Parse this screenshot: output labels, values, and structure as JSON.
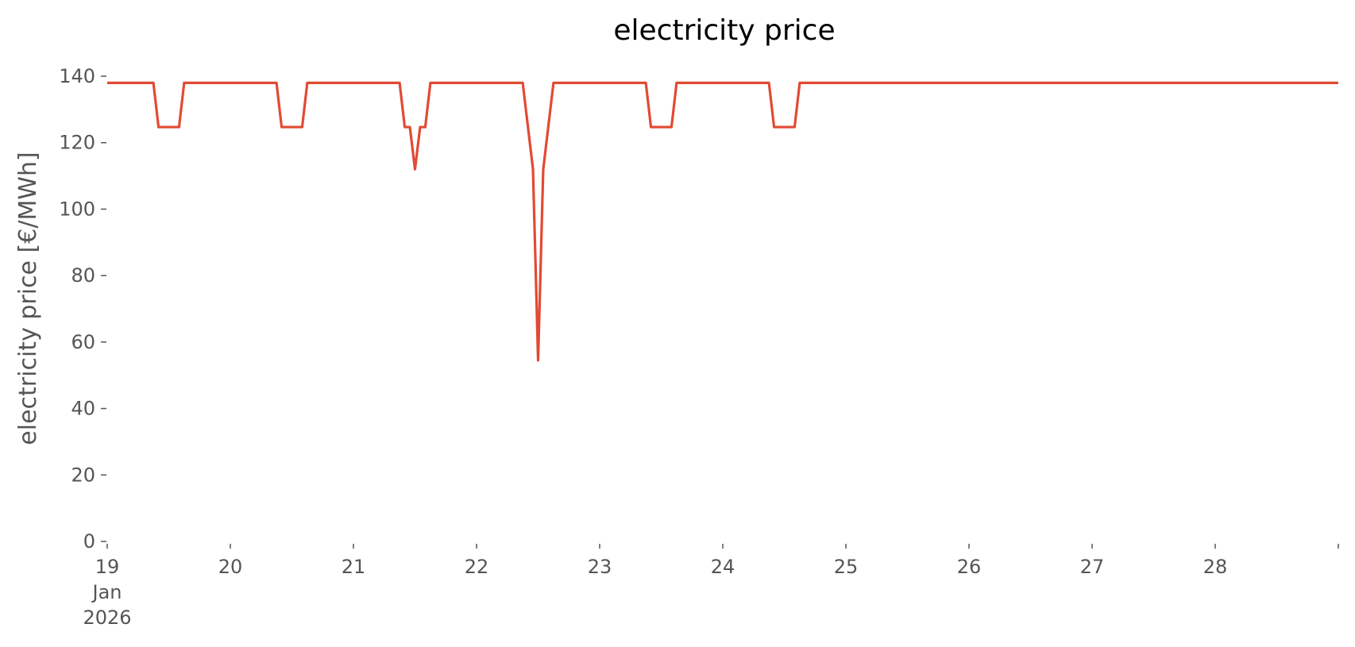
{
  "chart_data": {
    "type": "line",
    "title": "electricity price",
    "xlabel": "",
    "ylabel": "electricity price [€/MWh]",
    "ylim": [
      0,
      140
    ],
    "xlim": [
      "2026-01-19T00:00",
      "2026-01-29T00:00"
    ],
    "grid": false,
    "legend": "none",
    "x_ticks": [
      {
        "value": "2026-01-19T00:00",
        "label": [
          "19",
          "Jan",
          "2026"
        ]
      },
      {
        "value": "2026-01-20T00:00",
        "label": [
          "20"
        ]
      },
      {
        "value": "2026-01-21T00:00",
        "label": [
          "21"
        ]
      },
      {
        "value": "2026-01-22T00:00",
        "label": [
          "22"
        ]
      },
      {
        "value": "2026-01-23T00:00",
        "label": [
          "23"
        ]
      },
      {
        "value": "2026-01-24T00:00",
        "label": [
          "24"
        ]
      },
      {
        "value": "2026-01-25T00:00",
        "label": [
          "25"
        ]
      },
      {
        "value": "2026-01-26T00:00",
        "label": [
          "26"
        ]
      },
      {
        "value": "2026-01-27T00:00",
        "label": [
          "27"
        ]
      },
      {
        "value": "2026-01-28T00:00",
        "label": [
          "28"
        ]
      },
      {
        "value": "2026-01-29T00:00",
        "label": []
      }
    ],
    "y_ticks": [
      0,
      20,
      40,
      60,
      80,
      100,
      120,
      140
    ],
    "series": [
      {
        "color": "#e24a33",
        "points": [
          [
            "2026-01-19T00:00",
            138
          ],
          [
            "2026-01-19T09:00",
            138
          ],
          [
            "2026-01-19T10:00",
            124.7
          ],
          [
            "2026-01-19T14:00",
            124.7
          ],
          [
            "2026-01-19T15:00",
            138
          ],
          [
            "2026-01-20T09:00",
            138
          ],
          [
            "2026-01-20T10:00",
            124.7
          ],
          [
            "2026-01-20T14:00",
            124.7
          ],
          [
            "2026-01-20T15:00",
            138
          ],
          [
            "2026-01-21T09:00",
            138
          ],
          [
            "2026-01-21T10:00",
            124.7
          ],
          [
            "2026-01-21T11:00",
            124.7
          ],
          [
            "2026-01-21T12:00",
            112
          ],
          [
            "2026-01-21T13:00",
            124.7
          ],
          [
            "2026-01-21T14:00",
            124.7
          ],
          [
            "2026-01-21T15:00",
            138
          ],
          [
            "2026-01-22T09:00",
            138
          ],
          [
            "2026-01-22T11:00",
            112
          ],
          [
            "2026-01-22T12:00",
            54.5
          ],
          [
            "2026-01-22T13:00",
            112
          ],
          [
            "2026-01-22T15:00",
            138
          ],
          [
            "2026-01-23T09:00",
            138
          ],
          [
            "2026-01-23T10:00",
            124.7
          ],
          [
            "2026-01-23T14:00",
            124.7
          ],
          [
            "2026-01-23T15:00",
            138
          ],
          [
            "2026-01-24T09:00",
            138
          ],
          [
            "2026-01-24T10:00",
            124.7
          ],
          [
            "2026-01-24T14:00",
            124.7
          ],
          [
            "2026-01-24T15:00",
            138
          ],
          [
            "2026-01-29T00:00",
            138
          ]
        ]
      }
    ]
  }
}
